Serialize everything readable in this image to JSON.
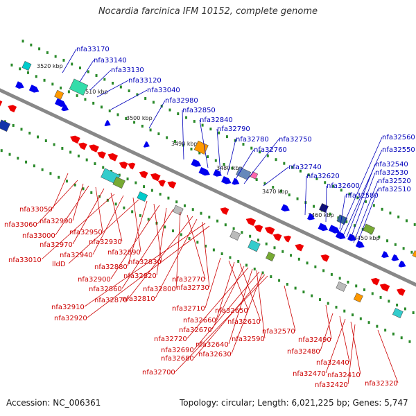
{
  "title": "Nocardia farcinica IFM 10152, complete genome",
  "accession": "Accession: NC_006361",
  "topology": "Topology: circular; Length: 6,021,225 bp; Genes: 5,747",
  "colors": {
    "forward": "#0000ee",
    "reverse": "#ee0000",
    "backbone": "#888888",
    "tick": "#2a8a2a",
    "label_forward": "#0000bb",
    "label_reverse": "#cc0000"
  },
  "scale_labels": [
    "3520 kbp",
    "3510 kbp",
    "3500 kbp",
    "3490 kbp",
    "3480 kbp",
    "3470 kbp",
    "3460 kbp",
    "3450 kbp"
  ],
  "forward_genes": [
    "nfa33170",
    "nfa33140",
    "nfa33130",
    "nfa33120",
    "nfa33040",
    "nfa32980",
    "nfa32850",
    "nfa32840",
    "nfa32790",
    "nfa32780",
    "nfa32760",
    "nfa32750",
    "nfa32740",
    "nfa32620",
    "nfa32600",
    "nfa32580",
    "nfa32560",
    "nfa32550",
    "nfa32540",
    "nfa32530",
    "nfa32520",
    "nfa32510"
  ],
  "reverse_genes": [
    "nfa33050",
    "nfa33060",
    "nfa32990",
    "nfa33000",
    "nfa32950",
    "nfa32970",
    "nfa32930",
    "nfa33010",
    "nfa32940",
    "nfa32890",
    "lldD",
    "nfa32880",
    "nfa32830",
    "nfa32900",
    "nfa32820",
    "nfa32860",
    "nfa32800",
    "nfa32770",
    "nfa32870",
    "nfa32810",
    "nfa32730",
    "nfa32910",
    "nfa32920",
    "nfa32710",
    "nfa32650",
    "nfa32660",
    "nfa32610",
    "nfa32670",
    "nfa32720",
    "nfa32640",
    "nfa32590",
    "nfa32690",
    "nfa32630",
    "nfa32680",
    "nfa32700",
    "nfa32570",
    "nfa32490",
    "nfa32480",
    "nfa32440",
    "nfa32470",
    "nfa32410",
    "nfa32420",
    "nfa32320"
  ]
}
